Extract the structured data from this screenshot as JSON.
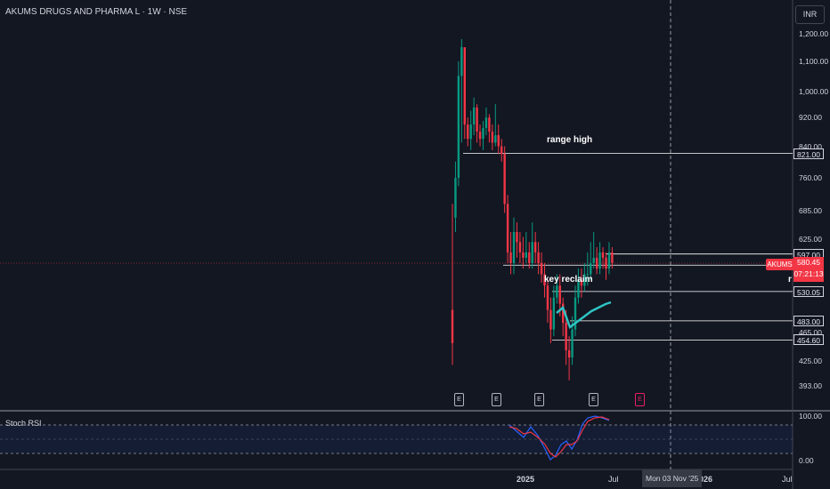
{
  "header": {
    "symbol_title": "AKUMS DRUGS AND PHARMA L · 1W · NSE",
    "currency_button": "INR"
  },
  "price_axis": [
    {
      "label": "1,200.00",
      "value": 1200
    },
    {
      "label": "1,100.00",
      "value": 1100
    },
    {
      "label": "1,000.00",
      "value": 1000
    },
    {
      "label": "920.00",
      "value": 920
    },
    {
      "label": "840.00",
      "value": 840
    },
    {
      "label": "760.00",
      "value": 760
    },
    {
      "label": "685.00",
      "value": 685
    },
    {
      "label": "625.00",
      "value": 625
    },
    {
      "label": "465.00",
      "value": 465
    },
    {
      "label": "425.00",
      "value": 425
    },
    {
      "label": "393.00",
      "value": 393
    }
  ],
  "levels": [
    {
      "label": "821.00",
      "value": 821
    },
    {
      "label": "597.00",
      "value": 597
    },
    {
      "label": "576.25",
      "value": 576.25
    },
    {
      "label": "530.05",
      "value": 530.05
    },
    {
      "label": "483.00",
      "value": 483
    },
    {
      "label": "454.60",
      "value": 454.6
    }
  ],
  "last_price": {
    "ticker": "AKUMS",
    "price": "580.45",
    "countdown": "07:21:13",
    "color": "#f23645"
  },
  "annotations": {
    "range_high": "range high",
    "key_reclaim": "key reclaim",
    "cut_text": "r"
  },
  "earnings_badge": "E",
  "indicator": {
    "name": "Stoch RSI",
    "top": "100.00",
    "bottom": "0.00"
  },
  "time_axis": {
    "label_2025": "2025",
    "label_jul": "Jul",
    "label_2026": "2026",
    "label_jul2": "Jul",
    "crosshair_date": "Mon 03 Nov '25"
  },
  "colors": {
    "up": "#089981",
    "down": "#f23645",
    "ema": "#2ec4c4",
    "k_line": "#2962ff",
    "d_line": "#f23645"
  },
  "chart_data": {
    "type": "candlestick",
    "candles": [
      [
        500,
        450,
        700,
        420,
        "E0"
      ],
      [
        670,
        760,
        800,
        640,
        0
      ],
      [
        760,
        1050,
        1100,
        740,
        0
      ],
      [
        1050,
        1150,
        1180,
        850,
        0
      ],
      [
        1150,
        900,
        960,
        860,
        0
      ],
      [
        900,
        860,
        920,
        840,
        0
      ],
      [
        860,
        900,
        940,
        830,
        0
      ],
      [
        900,
        950,
        980,
        870,
        0
      ],
      [
        950,
        880,
        960,
        850,
        0
      ],
      [
        880,
        860,
        900,
        840,
        0
      ],
      [
        860,
        890,
        910,
        830,
        0
      ],
      [
        890,
        920,
        950,
        870,
        0
      ],
      [
        920,
        880,
        930,
        850,
        0
      ],
      [
        880,
        850,
        900,
        830,
        0
      ],
      [
        850,
        870,
        960,
        840,
        0
      ],
      [
        870,
        840,
        900,
        820,
        0
      ],
      [
        840,
        820,
        860,
        800,
        "E"
      ],
      [
        820,
        700,
        840,
        680,
        0
      ],
      [
        700,
        600,
        720,
        580,
        0
      ],
      [
        600,
        580,
        640,
        560,
        0
      ],
      [
        580,
        640,
        670,
        560,
        0
      ],
      [
        640,
        620,
        660,
        590,
        0
      ],
      [
        620,
        600,
        640,
        580,
        0
      ],
      [
        600,
        590,
        630,
        570,
        0
      ],
      [
        590,
        600,
        640,
        580,
        0
      ],
      [
        600,
        580,
        620,
        570,
        0
      ],
      [
        580,
        620,
        660,
        570,
        "E"
      ],
      [
        620,
        600,
        640,
        580,
        0
      ],
      [
        600,
        580,
        620,
        560,
        0
      ],
      [
        580,
        560,
        600,
        545,
        0
      ],
      [
        560,
        540,
        580,
        520,
        0
      ],
      [
        540,
        500,
        550,
        480,
        0
      ],
      [
        500,
        470,
        520,
        450,
        0
      ],
      [
        470,
        520,
        540,
        460,
        0
      ],
      [
        520,
        540,
        560,
        510,
        0
      ],
      [
        540,
        510,
        560,
        490,
        0
      ],
      [
        510,
        480,
        520,
        460,
        0
      ],
      [
        480,
        440,
        500,
        420,
        0
      ],
      [
        440,
        430,
        460,
        400,
        0
      ],
      [
        430,
        470,
        490,
        420,
        0
      ],
      [
        470,
        520,
        540,
        460,
        0
      ],
      [
        520,
        550,
        570,
        510,
        0
      ],
      [
        550,
        540,
        570,
        520,
        0
      ],
      [
        540,
        560,
        580,
        530,
        0
      ],
      [
        560,
        560,
        600,
        540,
        0
      ],
      [
        560,
        580,
        620,
        550,
        "E"
      ],
      [
        580,
        590,
        640,
        570,
        0
      ],
      [
        590,
        570,
        610,
        560,
        0
      ],
      [
        570,
        600,
        620,
        560,
        0
      ],
      [
        600,
        590,
        610,
        570,
        0
      ],
      [
        590,
        570,
        600,
        550,
        0
      ],
      [
        570,
        600,
        620,
        560,
        0
      ],
      [
        600,
        580,
        610,
        570,
        0
      ]
    ]
  }
}
